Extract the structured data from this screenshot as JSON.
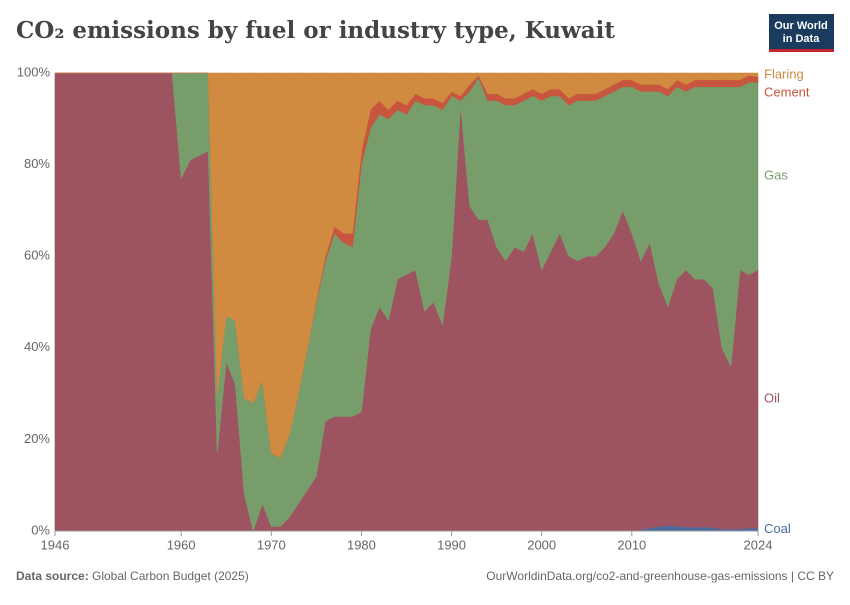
{
  "chart_data": {
    "type": "stacked-area",
    "title": "CO₂ emissions by fuel or industry type, Kuwait",
    "logo": [
      "Our World",
      "in Data"
    ],
    "source_label": "Data source:",
    "source": "Global Carbon Budget (2025)",
    "url": "OurWorldinData.org/co2-and-greenhouse-gas-emissions | CC BY",
    "x": [
      1946,
      1947,
      1948,
      1949,
      1950,
      1951,
      1952,
      1953,
      1954,
      1955,
      1956,
      1957,
      1958,
      1959,
      1960,
      1961,
      1962,
      1963,
      1964,
      1965,
      1966,
      1967,
      1968,
      1969,
      1970,
      1971,
      1972,
      1973,
      1974,
      1975,
      1976,
      1977,
      1978,
      1979,
      1980,
      1981,
      1982,
      1983,
      1984,
      1985,
      1986,
      1987,
      1988,
      1989,
      1990,
      1991,
      1992,
      1993,
      1994,
      1995,
      1996,
      1997,
      1998,
      1999,
      2000,
      2001,
      2002,
      2003,
      2004,
      2005,
      2006,
      2007,
      2008,
      2009,
      2010,
      2011,
      2012,
      2013,
      2014,
      2015,
      2016,
      2017,
      2018,
      2019,
      2020,
      2021,
      2022,
      2023,
      2024
    ],
    "xlim": [
      1946,
      2024
    ],
    "xticks": [
      1946,
      1960,
      1970,
      1980,
      1990,
      2000,
      2010,
      2024
    ],
    "ylim": [
      0,
      100
    ],
    "yticks": [
      {
        "value": 0,
        "label": "0%"
      },
      {
        "value": 20,
        "label": "20%"
      },
      {
        "value": 40,
        "label": "40%"
      },
      {
        "value": 60,
        "label": "60%"
      },
      {
        "value": 80,
        "label": "80%"
      },
      {
        "value": 100,
        "label": "100%"
      }
    ],
    "grid": true,
    "series": [
      {
        "name": "Coal",
        "color": "#4c6a9c",
        "values": [
          0,
          0,
          0,
          0,
          0,
          0,
          0,
          0,
          0,
          0,
          0,
          0,
          0,
          0,
          0,
          0,
          0,
          0,
          0,
          0,
          0,
          0,
          0,
          0,
          0,
          0,
          0,
          0,
          0,
          0,
          0,
          0,
          0,
          0,
          0,
          0,
          0,
          0,
          0,
          0,
          0,
          0,
          0,
          0,
          0,
          0,
          0,
          0,
          0,
          0,
          0,
          0,
          0,
          0,
          0,
          0,
          0,
          0,
          0,
          0,
          0,
          0,
          0,
          0,
          0,
          0.3,
          0.7,
          1,
          1.2,
          1,
          0.9,
          0.8,
          0.9,
          0.7,
          0.5,
          0.4,
          0.5,
          0.6,
          0.7
        ]
      },
      {
        "name": "Oil",
        "color": "#9e5361",
        "values": [
          100,
          100,
          100,
          100,
          100,
          100,
          100,
          100,
          100,
          100,
          100,
          100,
          100,
          100,
          77,
          81,
          82,
          83,
          17,
          37,
          32,
          8,
          0,
          6,
          1,
          1,
          3,
          6,
          9,
          12,
          24,
          25,
          25,
          25,
          26,
          44,
          49,
          46,
          55,
          56,
          57,
          48,
          50,
          45,
          60,
          93,
          71,
          68,
          68,
          62,
          59,
          62,
          61,
          65,
          57,
          61,
          65,
          60,
          59,
          60,
          60,
          62,
          65,
          70,
          65,
          58.7,
          62.3,
          53,
          47.8,
          54,
          56.1,
          54.2,
          54.1,
          52.3,
          39.5,
          35.6,
          56.5,
          55.4,
          56.3
        ]
      },
      {
        "name": "Gas",
        "color": "#779e6a",
        "values": [
          0,
          0,
          0,
          0,
          0,
          0,
          0,
          0,
          0,
          0,
          0,
          0,
          0,
          0,
          23,
          19,
          18,
          17,
          13,
          10,
          14,
          21,
          28,
          27,
          16,
          15,
          18,
          24,
          31,
          38,
          35,
          40,
          38,
          37,
          54,
          44,
          42,
          44,
          37,
          35,
          37,
          45,
          43,
          47,
          35,
          1,
          25,
          31,
          26,
          32,
          34,
          31,
          33,
          30,
          37,
          34,
          30,
          33,
          35,
          34,
          34,
          33,
          31,
          27,
          32,
          37,
          33,
          42,
          46,
          42,
          39,
          42,
          42,
          44,
          57,
          61,
          40,
          42,
          41
        ]
      },
      {
        "name": "Cement",
        "color": "#c8553d",
        "values": [
          0,
          0,
          0,
          0,
          0,
          0,
          0,
          0,
          0,
          0,
          0,
          0,
          0,
          0,
          0,
          0,
          0,
          0,
          0,
          0,
          0,
          0,
          0,
          0,
          0,
          0,
          0,
          0,
          0,
          0.5,
          1,
          1.5,
          2,
          3,
          3,
          4,
          3,
          2,
          2,
          2,
          1.5,
          1.5,
          1.5,
          1.5,
          1,
          1,
          1.5,
          0.5,
          1.5,
          1.5,
          1.5,
          1.5,
          1.5,
          1.5,
          1.5,
          1.5,
          1.5,
          1.5,
          1.5,
          1.5,
          1.5,
          1.5,
          1.5,
          1.5,
          1.5,
          1.5,
          1.5,
          1.5,
          1.5,
          1.5,
          1.5,
          1.5,
          1.5,
          1.5,
          1.5,
          1.5,
          1.5,
          1.5,
          1.2
        ]
      },
      {
        "name": "Flaring",
        "color": "#d08b41",
        "values": [
          0,
          0,
          0,
          0,
          0,
          0,
          0,
          0,
          0,
          0,
          0,
          0,
          0,
          0,
          0,
          0,
          0,
          0,
          70,
          53,
          54,
          71,
          72,
          67,
          83,
          84,
          79,
          70,
          60,
          49.5,
          40,
          33.5,
          35,
          35,
          17,
          8,
          6,
          8,
          6,
          7,
          4.5,
          5.5,
          5.5,
          6.5,
          4,
          5,
          2.5,
          0.5,
          4.5,
          4.5,
          5.5,
          5.5,
          4.5,
          3.5,
          4.5,
          3.5,
          3.5,
          5.5,
          4.5,
          4.5,
          4.5,
          3.5,
          2.5,
          1.5,
          1.5,
          2.5,
          2.5,
          2.5,
          3.5,
          1.5,
          2.5,
          1.5,
          1.5,
          1.5,
          1.5,
          1.5,
          1.5,
          0.5,
          0.8
        ]
      }
    ]
  }
}
